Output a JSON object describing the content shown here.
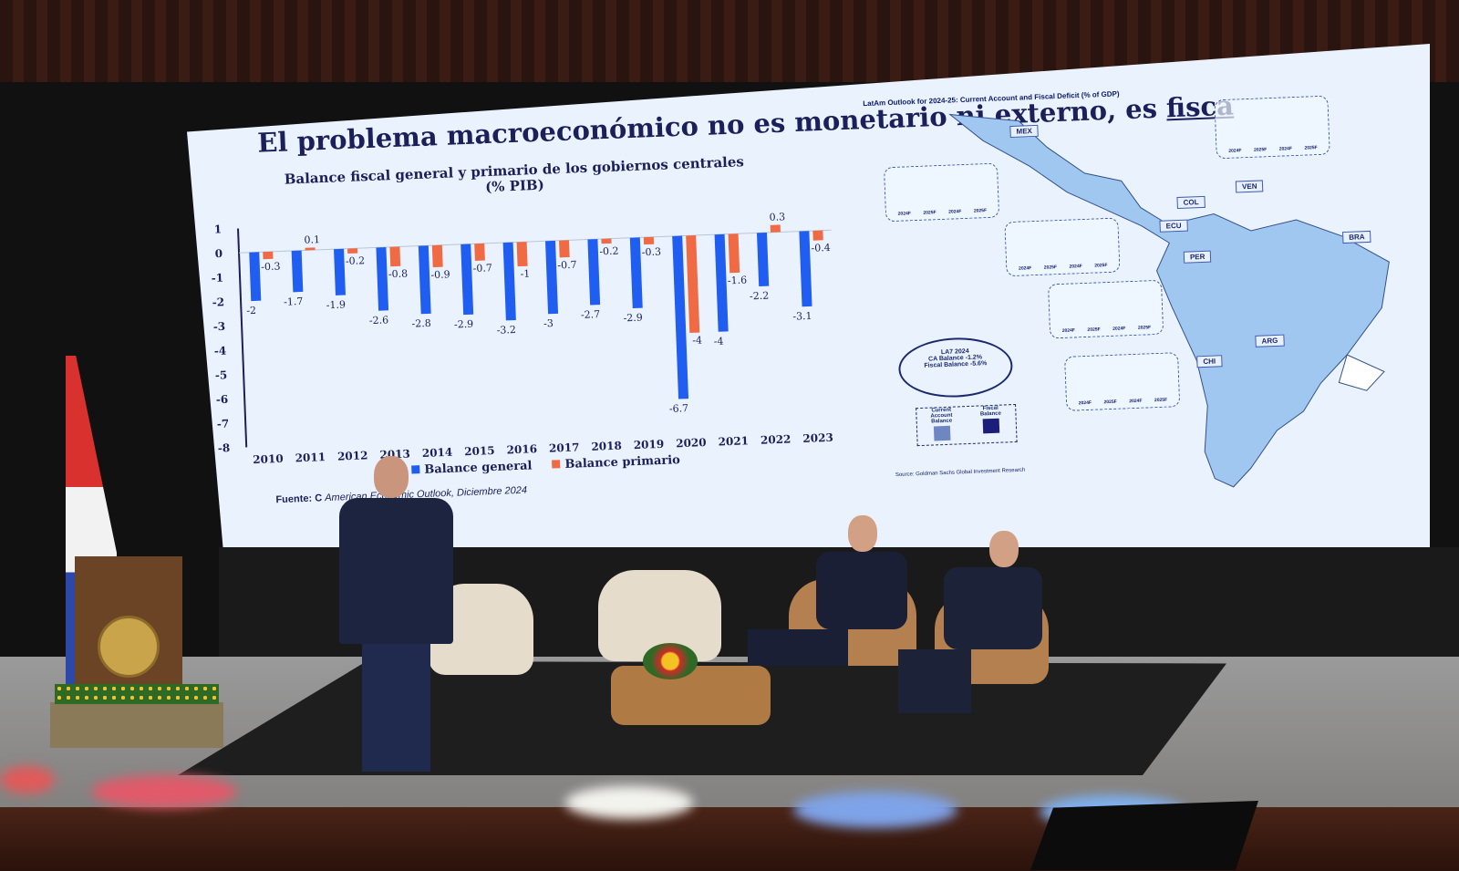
{
  "slide": {
    "title_main": "El problema macroeconómico no es monetario ni externo, es ",
    "title_underlined": "fisca",
    "chart_title": "Balance fiscal general y primario de los gobiernos centrales",
    "chart_subtitle": "(% PIB)",
    "source_prefix": "Fuente: C",
    "source_rest": "American Economic Outlook, Diciembre 2024"
  },
  "chart_data": {
    "type": "bar",
    "title": "Balance fiscal general y primario de los gobiernos centrales (% PIB)",
    "categories": [
      "2010",
      "2011",
      "2012",
      "2013",
      "2014",
      "2015",
      "2016",
      "2017",
      "2018",
      "2019",
      "2020",
      "2021",
      "2022",
      "2023"
    ],
    "series": [
      {
        "name": "Balance general",
        "color": "#1f5ef0",
        "values": [
          -2,
          -1.7,
          -1.9,
          -2.6,
          -2.8,
          -2.9,
          -3.2,
          -3,
          -2.7,
          -2.9,
          -6.7,
          -4,
          -2.2,
          -3.1
        ]
      },
      {
        "name": "Balance primario",
        "color": "#f06a44",
        "values": [
          -0.3,
          0.1,
          -0.2,
          -0.8,
          -0.9,
          -0.7,
          -1,
          -0.7,
          -0.2,
          -0.3,
          -4,
          -1.6,
          0.3,
          -0.4
        ]
      }
    ],
    "ylim": [
      -8,
      1
    ],
    "yticks": [
      "1",
      "0",
      "-1",
      "-2",
      "-3",
      "-4",
      "-5",
      "-6",
      "-7",
      "-8"
    ],
    "legend": "bottom"
  },
  "map": {
    "title": "LatAm Outlook for 2024-25: Current Account and Fiscal Deficit (% of GDP)",
    "countries": [
      "MEX",
      "COL",
      "VEN",
      "ECU",
      "PER",
      "BRA",
      "ARG",
      "CHI"
    ],
    "la7": {
      "title": "LA7 2024",
      "ca_label": "CA Balance",
      "ca_value": "-1.2%",
      "fb_label": "Fiscal Balance",
      "fb_value": "-5.6%"
    },
    "legend": {
      "ca": "Current Account Balance",
      "fb": "Fiscal Balance"
    },
    "inset_years": [
      "2024F",
      "2025F",
      "2024F",
      "2025F"
    ],
    "source": "Source: Goldman Sachs Global Investment Research"
  }
}
